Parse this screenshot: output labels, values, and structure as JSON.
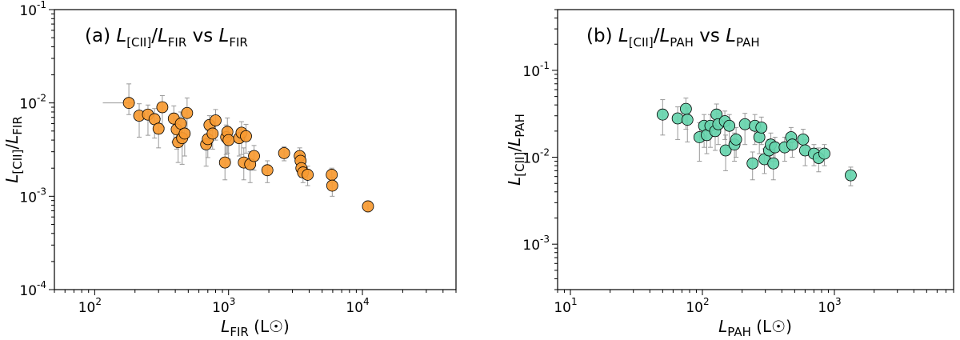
{
  "chart_data": [
    {
      "type": "scatter",
      "title": "(a) L[CII]/LFIR vs LFIR",
      "xlabel": "LFIR (L☉)",
      "ylabel": "L[CII]/LFIR",
      "xscale": "log",
      "yscale": "log",
      "xlim": [
        50,
        50000
      ],
      "ylim": [
        0.0001,
        0.1
      ],
      "xticks": [
        100,
        1000,
        10000
      ],
      "yticks": [
        0.0001,
        0.001,
        0.01,
        0.1
      ],
      "grid": false,
      "marker_color": "#f79a31",
      "series": [
        {
          "points": [
            {
              "x": 180,
              "y": 0.01,
              "yerr_lo": 0.0025,
              "yerr_hi": 0.006,
              "xerr_lo": 65,
              "xerr_hi": 20
            },
            {
              "x": 215,
              "y": 0.0073,
              "yerr_lo": 0.003,
              "yerr_hi": 0.0025
            },
            {
              "x": 250,
              "y": 0.0075,
              "yerr_lo": 0.003,
              "yerr_hi": 0.002
            },
            {
              "x": 280,
              "y": 0.0067,
              "yerr_lo": 0.0025,
              "yerr_hi": 0.002
            },
            {
              "x": 300,
              "y": 0.0053,
              "yerr_lo": 0.002,
              "yerr_hi": 0.0015
            },
            {
              "x": 320,
              "y": 0.009,
              "yerr_lo": 0.0035,
              "yerr_hi": 0.003
            },
            {
              "x": 390,
              "y": 0.0068,
              "yerr_lo": 0.003,
              "yerr_hi": 0.0025
            },
            {
              "x": 410,
              "y": 0.0052,
              "yerr_lo": 0.002,
              "yerr_hi": 0.0015
            },
            {
              "x": 420,
              "y": 0.0038,
              "yerr_lo": 0.0015,
              "yerr_hi": 0.0015
            },
            {
              "x": 440,
              "y": 0.006,
              "yerr_lo": 0.0025,
              "yerr_hi": 0.002
            },
            {
              "x": 450,
              "y": 0.0042,
              "yerr_lo": 0.002,
              "yerr_hi": 0.001
            },
            {
              "x": 470,
              "y": 0.0047,
              "yerr_lo": 0.002,
              "yerr_hi": 0.0015
            },
            {
              "x": 490,
              "y": 0.0078,
              "yerr_lo": 0.0035,
              "yerr_hi": 0.0035
            },
            {
              "x": 680,
              "y": 0.0036,
              "yerr_lo": 0.0015,
              "yerr_hi": 0.001
            },
            {
              "x": 700,
              "y": 0.0041,
              "yerr_lo": 0.0015,
              "yerr_hi": 0.001
            },
            {
              "x": 720,
              "y": 0.0058,
              "yerr_lo": 0.002,
              "yerr_hi": 0.0015
            },
            {
              "x": 760,
              "y": 0.0047,
              "yerr_lo": 0.0015,
              "yerr_hi": 0.0015
            },
            {
              "x": 800,
              "y": 0.0065,
              "yerr_lo": 0.0025,
              "yerr_hi": 0.002
            },
            {
              "x": 940,
              "y": 0.0023,
              "yerr_lo": 0.0008,
              "yerr_hi": 0.0015
            },
            {
              "x": 960,
              "y": 0.0043,
              "yerr_lo": 0.0015,
              "yerr_hi": 0.0015
            },
            {
              "x": 980,
              "y": 0.0049,
              "yerr_lo": 0.002,
              "yerr_hi": 0.002
            },
            {
              "x": 1000,
              "y": 0.004,
              "yerr_lo": 0.0015,
              "yerr_hi": 0.0015
            },
            {
              "x": 1200,
              "y": 0.0042,
              "yerr_lo": 0.0015,
              "yerr_hi": 0.001
            },
            {
              "x": 1250,
              "y": 0.0048,
              "yerr_lo": 0.002,
              "yerr_hi": 0.0015
            },
            {
              "x": 1300,
              "y": 0.0023,
              "yerr_lo": 0.0008,
              "yerr_hi": 0.001
            },
            {
              "x": 1350,
              "y": 0.0044,
              "yerr_lo": 0.0015,
              "yerr_hi": 0.0015
            },
            {
              "x": 1450,
              "y": 0.0022,
              "yerr_lo": 0.0008,
              "yerr_hi": 0.0008
            },
            {
              "x": 1550,
              "y": 0.0027,
              "yerr_lo": 0.0008,
              "yerr_hi": 0.0008
            },
            {
              "x": 1950,
              "y": 0.0019,
              "yerr_lo": 0.0005,
              "yerr_hi": 0.0005
            },
            {
              "x": 2600,
              "y": 0.0029,
              "yerr_lo": 0.0005,
              "yerr_hi": 0.0005
            },
            {
              "x": 3400,
              "y": 0.0027,
              "yerr_lo": 0.0006,
              "yerr_hi": 0.0006
            },
            {
              "x": 3450,
              "y": 0.0024,
              "yerr_lo": 0.0005,
              "yerr_hi": 0.0005
            },
            {
              "x": 3500,
              "y": 0.002,
              "yerr_lo": 0.0004,
              "yerr_hi": 0.0004
            },
            {
              "x": 3600,
              "y": 0.0018,
              "yerr_lo": 0.0004,
              "yerr_hi": 0.0004
            },
            {
              "x": 3900,
              "y": 0.0017,
              "yerr_lo": 0.0004,
              "yerr_hi": 0.0004
            },
            {
              "x": 5900,
              "y": 0.0017,
              "yerr_lo": 0.0003,
              "yerr_hi": 0.0003
            },
            {
              "x": 5950,
              "y": 0.0013,
              "yerr_lo": 0.0003,
              "yerr_hi": 0.0003
            },
            {
              "x": 11000,
              "y": 0.00078,
              "yerr_lo": 0.0001,
              "yerr_hi": 0.0001
            }
          ]
        }
      ]
    },
    {
      "type": "scatter",
      "title": "(b) L[CII]/LPAH vs LPAH",
      "xlabel": "LPAH (L☉)",
      "ylabel": "L[CII]/LPAH",
      "xscale": "log",
      "yscale": "log",
      "xlim": [
        8,
        8000
      ],
      "ylim": [
        0.0003,
        0.5
      ],
      "xticks": [
        10,
        100,
        1000
      ],
      "yticks": [
        0.001,
        0.01,
        0.1
      ],
      "grid": false,
      "marker_color": "#66d4ad",
      "series": [
        {
          "points": [
            {
              "x": 50,
              "y": 0.031,
              "yerr_lo": 0.013,
              "yerr_hi": 0.015
            },
            {
              "x": 65,
              "y": 0.028,
              "yerr_lo": 0.012,
              "yerr_hi": 0.01
            },
            {
              "x": 75,
              "y": 0.036,
              "yerr_lo": 0.015,
              "yerr_hi": 0.012
            },
            {
              "x": 77,
              "y": 0.027,
              "yerr_lo": 0.012,
              "yerr_hi": 0.01
            },
            {
              "x": 95,
              "y": 0.017,
              "yerr_lo": 0.008,
              "yerr_hi": 0.008
            },
            {
              "x": 103,
              "y": 0.023,
              "yerr_lo": 0.01,
              "yerr_hi": 0.008
            },
            {
              "x": 108,
              "y": 0.018,
              "yerr_lo": 0.007,
              "yerr_hi": 0.007
            },
            {
              "x": 115,
              "y": 0.023,
              "yerr_lo": 0.01,
              "yerr_hi": 0.008
            },
            {
              "x": 125,
              "y": 0.02,
              "yerr_lo": 0.008,
              "yerr_hi": 0.008
            },
            {
              "x": 128,
              "y": 0.031,
              "yerr_lo": 0.012,
              "yerr_hi": 0.01
            },
            {
              "x": 132,
              "y": 0.024,
              "yerr_lo": 0.01,
              "yerr_hi": 0.008
            },
            {
              "x": 148,
              "y": 0.026,
              "yerr_lo": 0.01,
              "yerr_hi": 0.008
            },
            {
              "x": 150,
              "y": 0.012,
              "yerr_lo": 0.005,
              "yerr_hi": 0.006
            },
            {
              "x": 160,
              "y": 0.023,
              "yerr_lo": 0.01,
              "yerr_hi": 0.008
            },
            {
              "x": 175,
              "y": 0.014,
              "yerr_lo": 0.005,
              "yerr_hi": 0.005
            },
            {
              "x": 180,
              "y": 0.016,
              "yerr_lo": 0.006,
              "yerr_hi": 0.006
            },
            {
              "x": 210,
              "y": 0.024,
              "yerr_lo": 0.01,
              "yerr_hi": 0.008
            },
            {
              "x": 240,
              "y": 0.0085,
              "yerr_lo": 0.003,
              "yerr_hi": 0.003
            },
            {
              "x": 250,
              "y": 0.023,
              "yerr_lo": 0.009,
              "yerr_hi": 0.008
            },
            {
              "x": 270,
              "y": 0.017,
              "yerr_lo": 0.006,
              "yerr_hi": 0.006
            },
            {
              "x": 280,
              "y": 0.022,
              "yerr_lo": 0.008,
              "yerr_hi": 0.007
            },
            {
              "x": 295,
              "y": 0.0095,
              "yerr_lo": 0.003,
              "yerr_hi": 0.003
            },
            {
              "x": 320,
              "y": 0.012,
              "yerr_lo": 0.004,
              "yerr_hi": 0.004
            },
            {
              "x": 330,
              "y": 0.014,
              "yerr_lo": 0.005,
              "yerr_hi": 0.005
            },
            {
              "x": 345,
              "y": 0.0085,
              "yerr_lo": 0.003,
              "yerr_hi": 0.003
            },
            {
              "x": 355,
              "y": 0.013,
              "yerr_lo": 0.004,
              "yerr_hi": 0.004
            },
            {
              "x": 420,
              "y": 0.013,
              "yerr_lo": 0.004,
              "yerr_hi": 0.004
            },
            {
              "x": 470,
              "y": 0.017,
              "yerr_lo": 0.005,
              "yerr_hi": 0.005
            },
            {
              "x": 480,
              "y": 0.014,
              "yerr_lo": 0.004,
              "yerr_hi": 0.004
            },
            {
              "x": 580,
              "y": 0.016,
              "yerr_lo": 0.005,
              "yerr_hi": 0.005
            },
            {
              "x": 600,
              "y": 0.012,
              "yerr_lo": 0.004,
              "yerr_hi": 0.004
            },
            {
              "x": 700,
              "y": 0.011,
              "yerr_lo": 0.003,
              "yerr_hi": 0.003
            },
            {
              "x": 760,
              "y": 0.0098,
              "yerr_lo": 0.003,
              "yerr_hi": 0.003
            },
            {
              "x": 840,
              "y": 0.011,
              "yerr_lo": 0.003,
              "yerr_hi": 0.003
            },
            {
              "x": 1330,
              "y": 0.0062,
              "yerr_lo": 0.0015,
              "yerr_hi": 0.0015
            }
          ]
        }
      ]
    }
  ]
}
